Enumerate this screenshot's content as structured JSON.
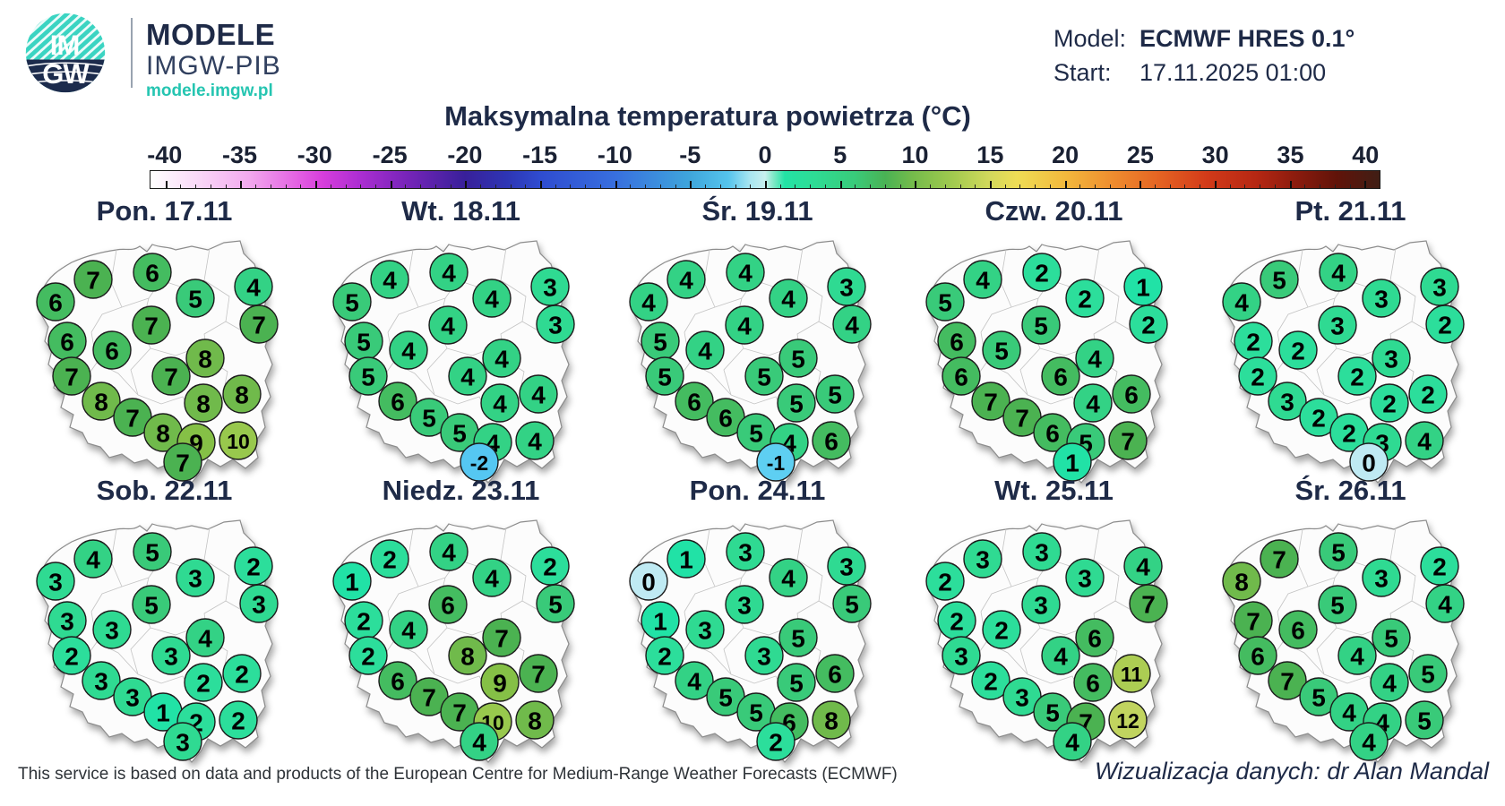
{
  "header": {
    "logo_im": "IM",
    "logo_gw": "GW",
    "brand": "MODELE",
    "brand_sub": "IMGW-PIB",
    "brand_url": "modele.imgw.pl",
    "model_label": "Model:",
    "model_value": "ECMWF HRES 0.1°",
    "start_label": "Start:",
    "start_value": "17.11.2025 01:00",
    "brand_teal": "#2EC4B6",
    "navy": "#1E2A47"
  },
  "title": "Maksymalna temperatura powietrza (°C)",
  "colorbar": {
    "unit_min": -41,
    "unit_max": 41,
    "tick_labels": [
      -40,
      -35,
      -30,
      -25,
      -20,
      -15,
      -10,
      -5,
      0,
      5,
      10,
      15,
      20,
      25,
      30,
      35,
      40
    ],
    "gradient_stops": [
      [
        0,
        "#FFFFFF"
      ],
      [
        4,
        "#F9D7F7"
      ],
      [
        8,
        "#F2A9EE"
      ],
      [
        12,
        "#E360E2"
      ],
      [
        14,
        "#D73EDC"
      ],
      [
        17,
        "#AC2ED2"
      ],
      [
        21,
        "#7524B8"
      ],
      [
        25.6,
        "#38209A"
      ],
      [
        29,
        "#2E35B4"
      ],
      [
        31.7,
        "#2F4CD0"
      ],
      [
        37.8,
        "#386FDE"
      ],
      [
        43.9,
        "#3FA6DC"
      ],
      [
        47,
        "#55C4EC"
      ],
      [
        48.8,
        "#A9E6F1"
      ],
      [
        50,
        "#C8F0EF"
      ],
      [
        50.7,
        "#7FE9C6"
      ],
      [
        51.6,
        "#23E3A5"
      ],
      [
        54,
        "#2EDC95"
      ],
      [
        57.3,
        "#39CB7A"
      ],
      [
        59.8,
        "#4AB254"
      ],
      [
        62,
        "#74BB4B"
      ],
      [
        65,
        "#9DC94E"
      ],
      [
        68.3,
        "#D3D95C"
      ],
      [
        70.5,
        "#EFDD55"
      ],
      [
        74.4,
        "#F2B93D"
      ],
      [
        78,
        "#EF9030"
      ],
      [
        82,
        "#E56423"
      ],
      [
        86,
        "#D23A19"
      ],
      [
        90,
        "#B52713"
      ],
      [
        93,
        "#8E1C0E"
      ],
      [
        96.5,
        "#611309"
      ],
      [
        100,
        "#401E15"
      ]
    ]
  },
  "chart_data": {
    "type": "map",
    "description": "Daily maximum air temperature (°C) forecast bubbles over Poland, 20 locations x 10 days",
    "bubble_positions": [
      [
        86,
        57
      ],
      [
        152,
        49
      ],
      [
        200,
        78
      ],
      [
        265,
        65
      ],
      [
        44,
        82
      ],
      [
        271,
        107
      ],
      [
        151,
        108
      ],
      [
        57,
        126
      ],
      [
        107,
        136
      ],
      [
        211,
        145
      ],
      [
        62,
        165
      ],
      [
        173,
        165
      ],
      [
        95,
        193
      ],
      [
        209,
        195
      ],
      [
        252,
        185
      ],
      [
        130,
        211
      ],
      [
        164,
        228
      ],
      [
        201,
        239
      ],
      [
        248,
        237
      ],
      [
        186,
        261
      ]
    ],
    "value_colors": {
      "-2": "#55C7F2",
      "-1": "#5ECFF2",
      "0": "#BFEAF3",
      "1": "#21E2A6",
      "2": "#2CDE9B",
      "3": "#2FDA92",
      "4": "#33D285",
      "5": "#39CA79",
      "6": "#44BC60",
      "7": "#4BB251",
      "8": "#70BA4B",
      "9": "#85C046",
      "10": "#98C84D",
      "11": "#ACCD53",
      "12": "#C1D45F"
    },
    "days": [
      {
        "label": "Pon. 17.11",
        "values": [
          7,
          6,
          5,
          4,
          6,
          7,
          7,
          6,
          6,
          8,
          7,
          7,
          8,
          8,
          8,
          7,
          8,
          9,
          10,
          7
        ]
      },
      {
        "label": "Wt. 18.11",
        "values": [
          4,
          4,
          4,
          3,
          5,
          3,
          4,
          5,
          4,
          4,
          5,
          4,
          6,
          4,
          4,
          5,
          5,
          4,
          4,
          -2
        ]
      },
      {
        "label": "Śr. 19.11",
        "values": [
          4,
          4,
          4,
          3,
          4,
          4,
          4,
          5,
          4,
          5,
          5,
          5,
          6,
          5,
          5,
          6,
          5,
          4,
          6,
          -1
        ]
      },
      {
        "label": "Czw. 20.11",
        "values": [
          4,
          2,
          2,
          1,
          5,
          2,
          5,
          6,
          5,
          4,
          6,
          6,
          7,
          4,
          6,
          7,
          6,
          5,
          7,
          1
        ]
      },
      {
        "label": "Pt. 21.11",
        "values": [
          5,
          4,
          3,
          3,
          4,
          2,
          3,
          2,
          2,
          3,
          2,
          2,
          3,
          2,
          2,
          2,
          2,
          3,
          4,
          0
        ]
      },
      {
        "label": "Sob. 22.11",
        "values": [
          4,
          5,
          3,
          2,
          3,
          3,
          5,
          3,
          3,
          4,
          2,
          3,
          3,
          2,
          2,
          3,
          1,
          2,
          2,
          3
        ]
      },
      {
        "label": "Niedz. 23.11",
        "values": [
          2,
          4,
          4,
          2,
          1,
          5,
          6,
          2,
          4,
          7,
          2,
          8,
          6,
          9,
          7,
          7,
          7,
          10,
          8,
          4
        ]
      },
      {
        "label": "Pon. 24.11",
        "values": [
          1,
          3,
          4,
          3,
          0,
          5,
          3,
          1,
          3,
          5,
          2,
          3,
          4,
          5,
          6,
          5,
          5,
          6,
          8,
          2
        ]
      },
      {
        "label": "Wt. 25.11",
        "values": [
          3,
          3,
          3,
          4,
          2,
          7,
          3,
          2,
          2,
          6,
          3,
          4,
          2,
          6,
          11,
          3,
          5,
          7,
          12,
          4
        ]
      },
      {
        "label": "Śr. 26.11",
        "values": [
          7,
          5,
          3,
          2,
          8,
          4,
          5,
          7,
          6,
          5,
          6,
          4,
          7,
          4,
          5,
          5,
          4,
          4,
          5,
          4
        ]
      }
    ]
  },
  "footer": {
    "left": "This service is based on data and products of the European Centre for Medium-Range Weather Forecasts (ECMWF)",
    "right": "Wizualizacja danych: dr Alan Mandal"
  }
}
